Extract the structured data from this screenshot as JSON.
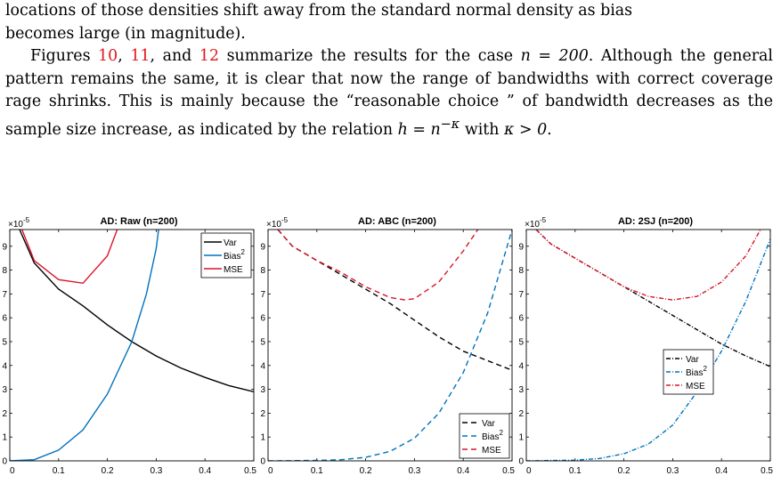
{
  "text": {
    "line1": "locations of those densities shift away from the standard normal density as bias",
    "line2": "becomes large (in magnitude).",
    "p2_a": "Figures ",
    "ref1": "10",
    "p2_b": ", ",
    "ref2": "11",
    "p2_c": ", and ",
    "ref3": "12",
    "p2_d": " summarize the results for the case ",
    "n_eq": "n = 200",
    "p2_e": ". Although the general pattern remains the same, it is clear that now the range of bandwidths with correct coverage rage shrinks. This is mainly because the “reasonable choice ” of bandwidth decreases as the sample size increase, as indicated by the relation ",
    "h_eq": "h = n",
    "h_exp": "−κ",
    "p2_f": " with ",
    "kappa_eq": "κ > 0",
    "p2_g": "."
  },
  "colors": {
    "var": "#000000",
    "bias2": "#0072bd",
    "mse": "#d9152b"
  },
  "chart_data": [
    {
      "type": "line",
      "title": "AD: Raw (n=200)",
      "y_exponent_label": "×10",
      "y_exponent": "-5",
      "xlim": [
        0,
        0.5
      ],
      "ylim": [
        0,
        9.7
      ],
      "xticks": [
        "0",
        "0.1",
        "0.2",
        "0.3",
        "0.4",
        "0.5"
      ],
      "yticks": [
        "0",
        "1",
        "2",
        "3",
        "4",
        "5",
        "6",
        "7",
        "8",
        "9"
      ],
      "legend_position": "top-right",
      "line_style": "solid",
      "series": [
        {
          "name": "Var",
          "x": [
            0.02,
            0.05,
            0.1,
            0.15,
            0.2,
            0.25,
            0.3,
            0.35,
            0.4,
            0.45,
            0.5
          ],
          "values": [
            9.7,
            8.3,
            7.2,
            6.5,
            5.7,
            5.0,
            4.4,
            3.9,
            3.5,
            3.15,
            2.9
          ]
        },
        {
          "name": "Bias",
          "name_sup": "2",
          "x": [
            0,
            0.05,
            0.1,
            0.15,
            0.2,
            0.25,
            0.28,
            0.3,
            0.305
          ],
          "values": [
            0,
            0.05,
            0.45,
            1.3,
            2.8,
            5.0,
            7.0,
            8.9,
            9.7
          ]
        },
        {
          "name": "MSE",
          "x": [
            0.025,
            0.05,
            0.1,
            0.15,
            0.2,
            0.22
          ],
          "values": [
            9.7,
            8.4,
            7.6,
            7.45,
            8.6,
            9.7
          ]
        }
      ]
    },
    {
      "type": "line",
      "title": "AD: ABC (n=200)",
      "y_exponent_label": "×10",
      "y_exponent": "-5",
      "xlim": [
        0,
        0.5
      ],
      "ylim": [
        0,
        9.7
      ],
      "xticks": [
        "0",
        "0.1",
        "0.2",
        "0.3",
        "0.4",
        "0.5"
      ],
      "yticks": [
        "0",
        "1",
        "2",
        "3",
        "4",
        "5",
        "6",
        "7",
        "8",
        "9"
      ],
      "legend_position": "bottom-right",
      "line_style": "dashed",
      "series": [
        {
          "name": "Var",
          "x": [
            0.02,
            0.05,
            0.1,
            0.15,
            0.2,
            0.25,
            0.3,
            0.35,
            0.4,
            0.45,
            0.5
          ],
          "values": [
            9.7,
            9.0,
            8.4,
            7.8,
            7.2,
            6.6,
            5.9,
            5.2,
            4.6,
            4.2,
            3.8
          ]
        },
        {
          "name": "Bias",
          "name_sup": "2",
          "x": [
            0,
            0.1,
            0.15,
            0.2,
            0.25,
            0.3,
            0.35,
            0.4,
            0.45,
            0.5
          ],
          "values": [
            0,
            0.02,
            0.05,
            0.15,
            0.4,
            0.95,
            2.0,
            3.7,
            6.2,
            9.7
          ]
        },
        {
          "name": "MSE",
          "x": [
            0.02,
            0.05,
            0.1,
            0.15,
            0.2,
            0.25,
            0.28,
            0.3,
            0.35,
            0.4,
            0.43
          ],
          "values": [
            9.7,
            9.0,
            8.4,
            7.9,
            7.3,
            6.85,
            6.75,
            6.8,
            7.5,
            8.8,
            9.7
          ]
        }
      ]
    },
    {
      "type": "line",
      "title": "AD: 2SJ (n=200)",
      "y_exponent_label": "×10",
      "y_exponent": "-5",
      "xlim": [
        0,
        0.5
      ],
      "ylim": [
        0,
        9.7
      ],
      "xticks": [
        "0",
        "0.1",
        "0.2",
        "0.3",
        "0.4",
        "0.5"
      ],
      "yticks": [
        "0",
        "1",
        "2",
        "3",
        "4",
        "5",
        "6",
        "7",
        "8",
        "9"
      ],
      "legend_position": "center-right",
      "line_style": "dashdot",
      "series": [
        {
          "name": "Var",
          "x": [
            0.02,
            0.05,
            0.1,
            0.15,
            0.2,
            0.25,
            0.3,
            0.35,
            0.4,
            0.45,
            0.5
          ],
          "values": [
            9.7,
            9.1,
            8.5,
            7.9,
            7.3,
            6.7,
            6.1,
            5.5,
            4.9,
            4.4,
            3.95
          ]
        },
        {
          "name": "Bias",
          "name_sup": "2",
          "x": [
            0,
            0.1,
            0.15,
            0.2,
            0.25,
            0.3,
            0.35,
            0.4,
            0.45,
            0.5
          ],
          "values": [
            0,
            0.03,
            0.1,
            0.3,
            0.7,
            1.5,
            2.9,
            4.6,
            6.7,
            9.3
          ]
        },
        {
          "name": "MSE",
          "x": [
            0.02,
            0.05,
            0.1,
            0.15,
            0.2,
            0.25,
            0.3,
            0.35,
            0.4,
            0.45,
            0.48
          ],
          "values": [
            9.7,
            9.1,
            8.5,
            7.9,
            7.3,
            6.9,
            6.75,
            6.9,
            7.5,
            8.6,
            9.7
          ]
        }
      ]
    }
  ]
}
